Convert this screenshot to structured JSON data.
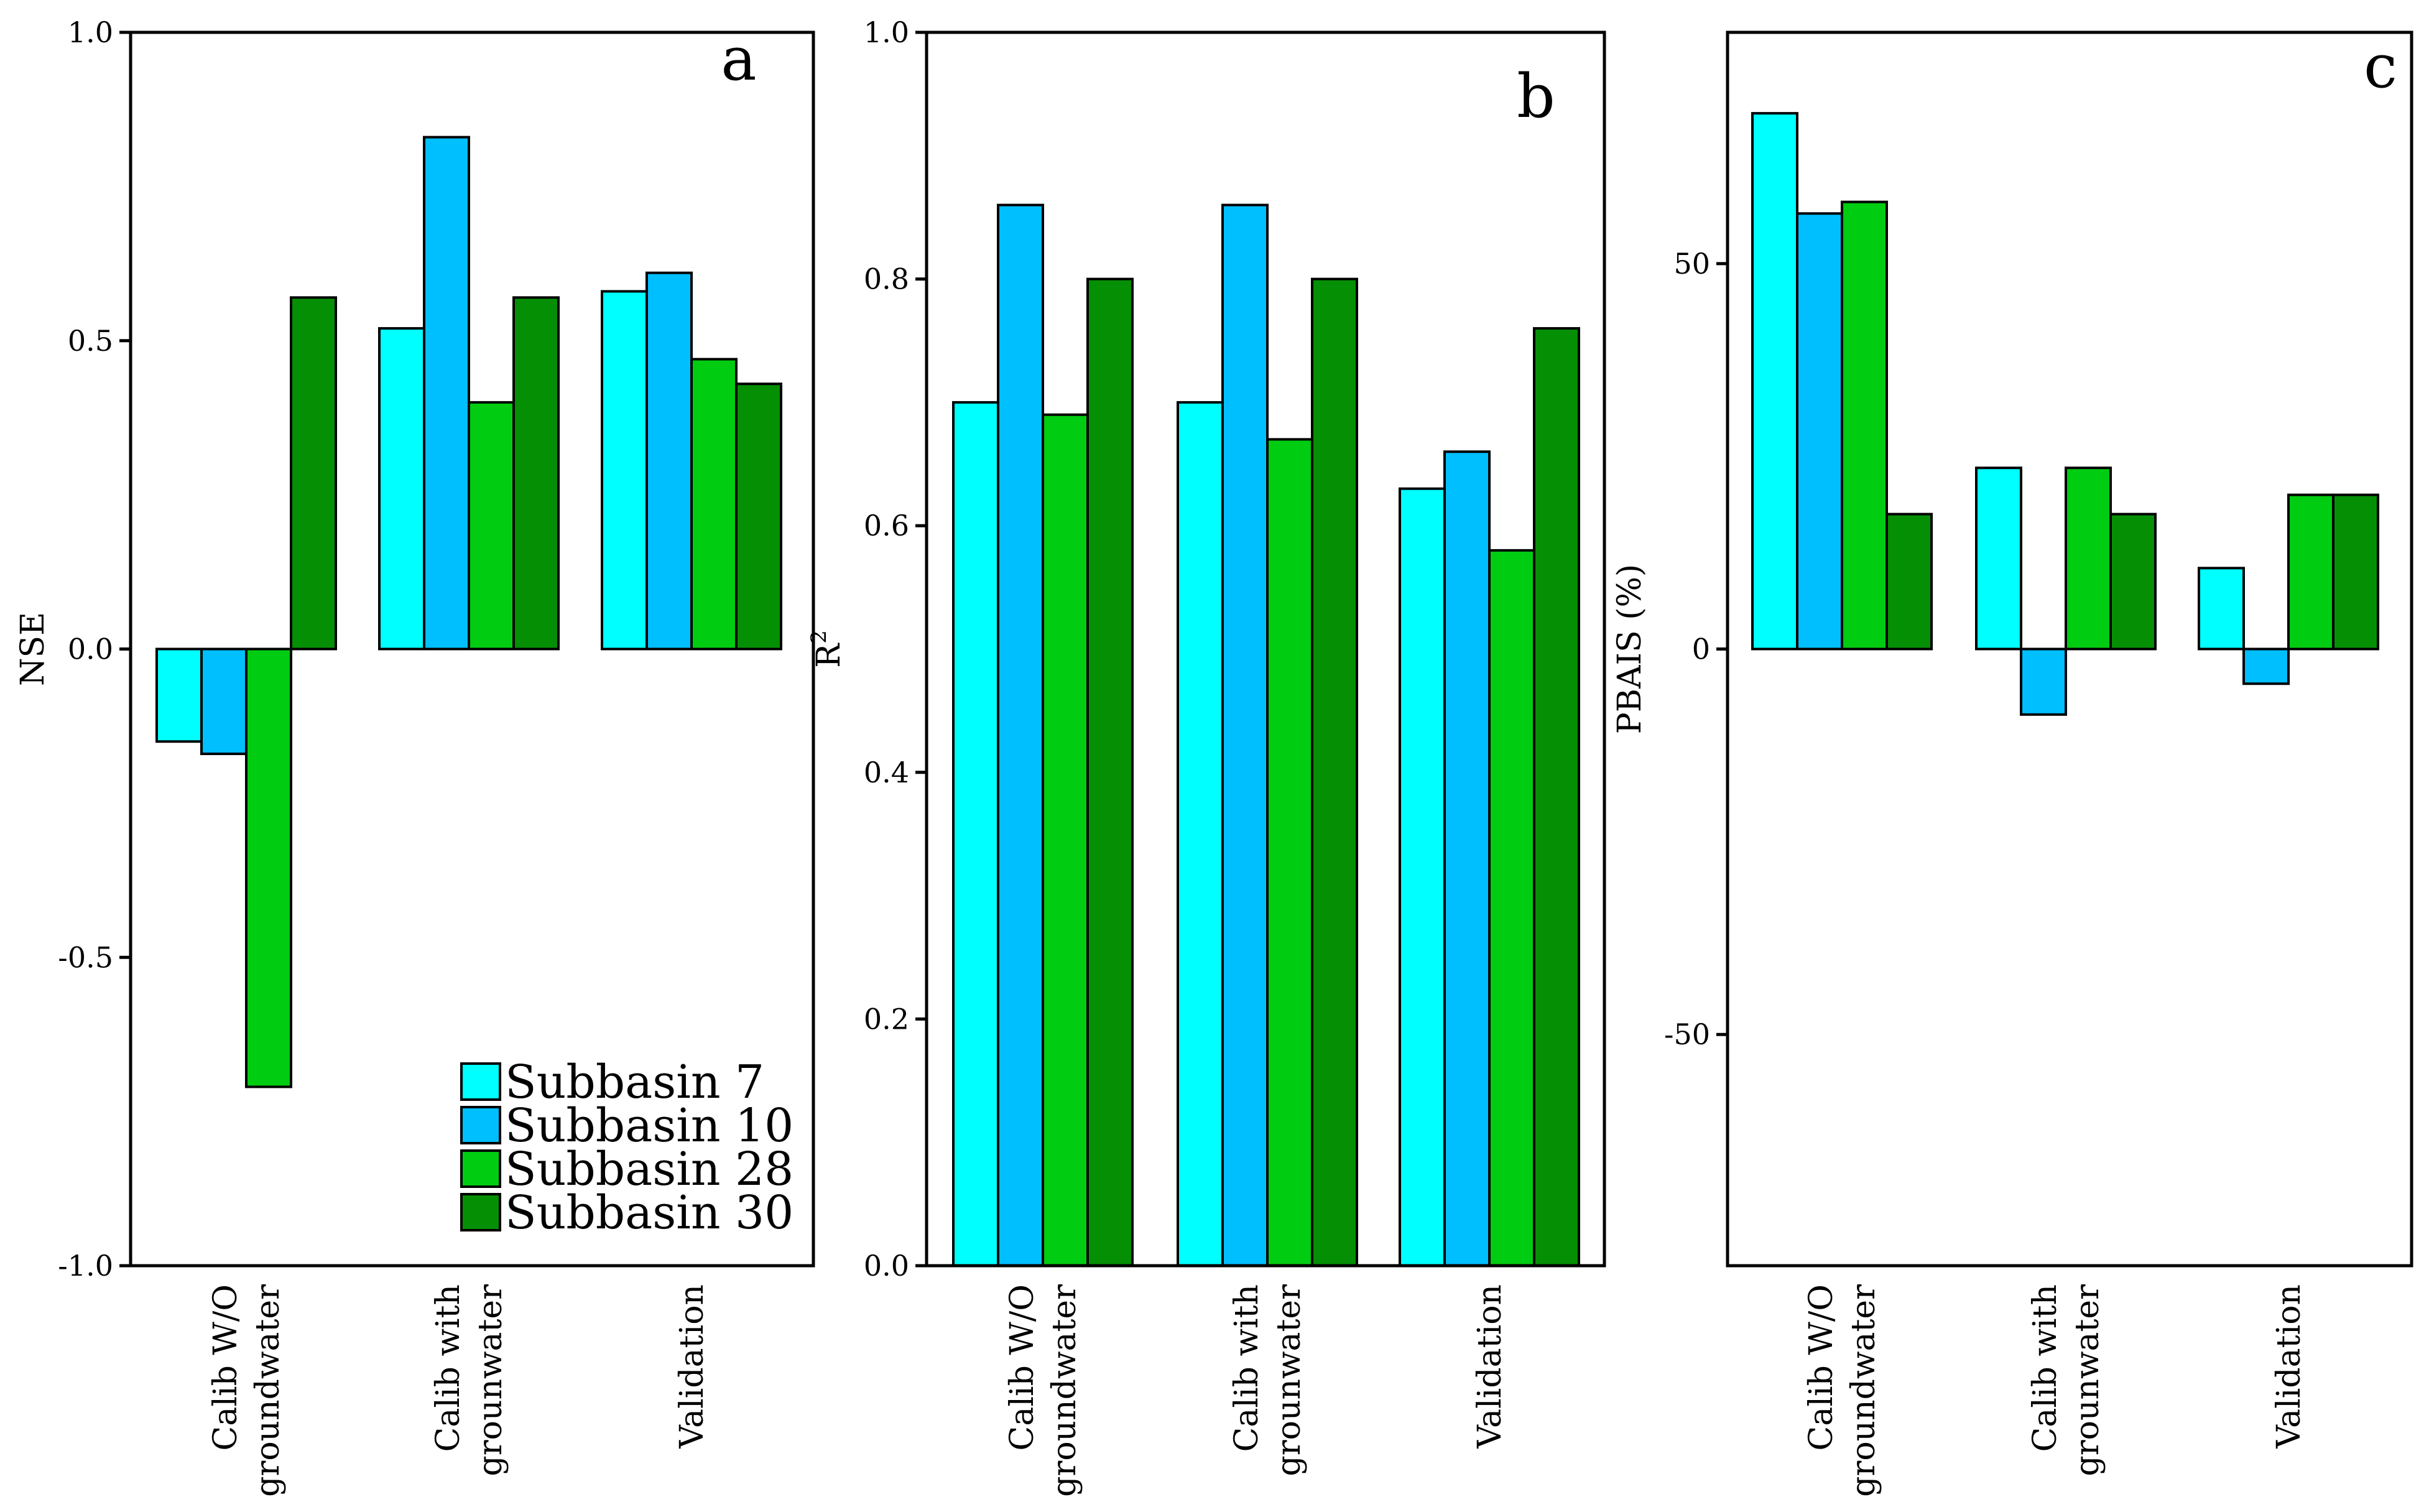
{
  "colors": {
    "Subbasin 7": "#00ffff",
    "Subbasin 10": "#00bfff",
    "Subbasin 28": "#00cc11",
    "Subbasin 30": "#058f05"
  },
  "chart_data": [
    {
      "type": "bar",
      "panel": "a",
      "ylabel": "NSE",
      "ylim": [
        -1.0,
        1.0
      ],
      "yticks": [
        -1.0,
        -0.5,
        0.0,
        0.5,
        1.0
      ],
      "ytick_labels": [
        "-1.0",
        "-0.5",
        "0.0",
        "0.5",
        "1.0"
      ],
      "categories": [
        [
          "Calib W/O",
          "groundwater"
        ],
        [
          "Calib with",
          "grounwater"
        ],
        [
          "Validation"
        ]
      ],
      "series": [
        {
          "name": "Subbasin 7",
          "values": [
            -0.15,
            0.52,
            0.58
          ]
        },
        {
          "name": "Subbasin 10",
          "values": [
            -0.17,
            0.83,
            0.61
          ]
        },
        {
          "name": "Subbasin 28",
          "values": [
            -0.71,
            0.4,
            0.47
          ]
        },
        {
          "name": "Subbasin 30",
          "values": [
            0.57,
            0.57,
            0.43
          ]
        }
      ],
      "legend": {
        "position": "bottom-right",
        "entries": [
          "Subbasin 7",
          "Subbasin 10",
          "Subbasin 28",
          "Subbasin 30"
        ]
      }
    },
    {
      "type": "bar",
      "panel": "b",
      "ylabel": "R",
      "ylabel_superscript": "2",
      "ylim": [
        0.0,
        1.0
      ],
      "yticks": [
        0.0,
        0.2,
        0.4,
        0.6,
        0.8,
        1.0
      ],
      "ytick_labels": [
        "0.0",
        "0.2",
        "0.4",
        "0.6",
        "0.8",
        "1.0"
      ],
      "categories": [
        [
          "Calib W/O",
          "groundwater"
        ],
        [
          "Calib with",
          "grounwater"
        ],
        [
          "Validation"
        ]
      ],
      "series": [
        {
          "name": "Subbasin 7",
          "values": [
            0.7,
            0.7,
            0.63
          ]
        },
        {
          "name": "Subbasin 10",
          "values": [
            0.86,
            0.86,
            0.66
          ]
        },
        {
          "name": "Subbasin 28",
          "values": [
            0.69,
            0.67,
            0.58
          ]
        },
        {
          "name": "Subbasin 30",
          "values": [
            0.8,
            0.8,
            0.76
          ]
        }
      ]
    },
    {
      "type": "bar",
      "panel": "c",
      "ylabel": "PBAIS (%)",
      "ylim": [
        -80,
        80
      ],
      "yticks": [
        -50,
        0,
        50
      ],
      "ytick_labels": [
        "-50",
        "0",
        "50"
      ],
      "categories": [
        [
          "Calib W/O",
          "groundwater"
        ],
        [
          "Calib with",
          "grounwater"
        ],
        [
          "Validation"
        ]
      ],
      "series": [
        {
          "name": "Subbasin 7",
          "values": [
            69.5,
            23.5,
            10.5
          ]
        },
        {
          "name": "Subbasin 10",
          "values": [
            56.5,
            -8.5,
            -4.5
          ]
        },
        {
          "name": "Subbasin 28",
          "values": [
            58,
            23.5,
            20
          ]
        },
        {
          "name": "Subbasin 30",
          "values": [
            17.5,
            17.5,
            20
          ]
        }
      ]
    }
  ]
}
